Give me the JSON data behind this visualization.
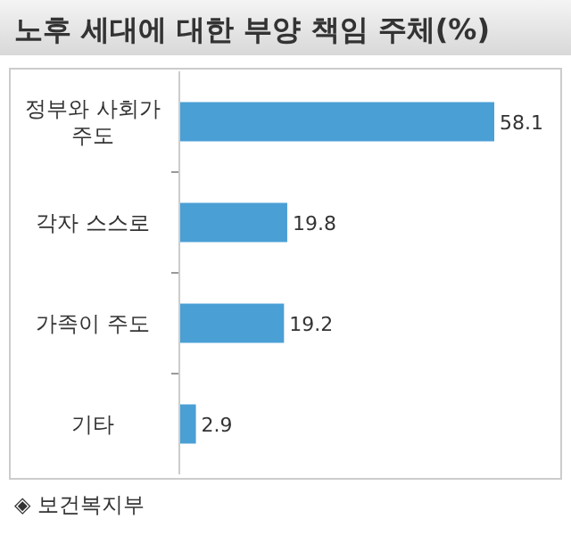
{
  "chart_data": {
    "type": "bar",
    "orientation": "horizontal",
    "title": "노후 세대에 대한 부양 책임 주체(%)",
    "categories": [
      "정부와 사회가 주도",
      "각자 스스로",
      "가족이 주도",
      "기타"
    ],
    "values": [
      58.1,
      19.8,
      19.2,
      2.9
    ],
    "color": "#4a9fd5",
    "data_labels": true,
    "annotations": [
      "◈ 보건복지부"
    ]
  }
}
